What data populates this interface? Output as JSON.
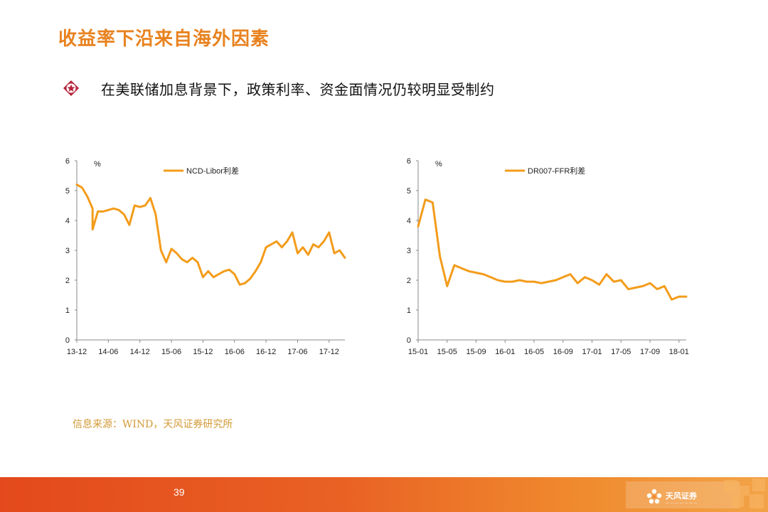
{
  "title": "收益率下沿来自海外因素",
  "bullet": {
    "icon": "diamond-star-icon",
    "text": "在美联储加息背景下，政策利率、资金面情况仍较明显受制约"
  },
  "source": "信息来源：WIND，天风证券研究所",
  "footer": {
    "page_number": "39",
    "logo_text": "天风证券",
    "logo_icon": "tianfeng-logo-icon"
  },
  "colors": {
    "title": "#e8821f",
    "series": "#f39c1b",
    "source": "#d39a35",
    "footer": "#e3491c"
  },
  "chart_data": [
    {
      "type": "line",
      "unit": "%",
      "ylim": [
        0,
        6
      ],
      "yticks": [
        "0",
        "1",
        "2",
        "3",
        "4",
        "5",
        "6"
      ],
      "x_ticks": [
        "13-12",
        "14-06",
        "14-12",
        "15-06",
        "15-12",
        "16-06",
        "16-12",
        "17-06",
        "17-12"
      ],
      "x_range": [
        "2013-12",
        "2018-03"
      ],
      "legend": "top-center",
      "grid": false,
      "series": [
        {
          "name": "NCD-Libor利差",
          "color": "#f39c1b",
          "points": [
            [
              "2013-12",
              5.2
            ],
            [
              "2014-01",
              5.1
            ],
            [
              "2014-02",
              4.8
            ],
            [
              "2014-03",
              4.4
            ],
            [
              "2014-03",
              3.7
            ],
            [
              "2014-04",
              4.3
            ],
            [
              "2014-05",
              4.3
            ],
            [
              "2014-06",
              4.35
            ],
            [
              "2014-07",
              4.4
            ],
            [
              "2014-08",
              4.35
            ],
            [
              "2014-09",
              4.2
            ],
            [
              "2014-10",
              3.85
            ],
            [
              "2014-11",
              4.5
            ],
            [
              "2014-12",
              4.45
            ],
            [
              "2015-01",
              4.5
            ],
            [
              "2015-02",
              4.75
            ],
            [
              "2015-03",
              4.2
            ],
            [
              "2015-04",
              3.0
            ],
            [
              "2015-05",
              2.6
            ],
            [
              "2015-06",
              3.05
            ],
            [
              "2015-07",
              2.9
            ],
            [
              "2015-08",
              2.7
            ],
            [
              "2015-09",
              2.6
            ],
            [
              "2015-10",
              2.75
            ],
            [
              "2015-11",
              2.6
            ],
            [
              "2015-12",
              2.1
            ],
            [
              "2016-01",
              2.3
            ],
            [
              "2016-02",
              2.1
            ],
            [
              "2016-03",
              2.2
            ],
            [
              "2016-04",
              2.3
            ],
            [
              "2016-05",
              2.35
            ],
            [
              "2016-06",
              2.2
            ],
            [
              "2016-07",
              1.85
            ],
            [
              "2016-08",
              1.9
            ],
            [
              "2016-09",
              2.05
            ],
            [
              "2016-10",
              2.3
            ],
            [
              "2016-11",
              2.6
            ],
            [
              "2016-12",
              3.1
            ],
            [
              "2017-01",
              3.2
            ],
            [
              "2017-02",
              3.3
            ],
            [
              "2017-03",
              3.1
            ],
            [
              "2017-04",
              3.3
            ],
            [
              "2017-05",
              3.6
            ],
            [
              "2017-06",
              2.9
            ],
            [
              "2017-07",
              3.1
            ],
            [
              "2017-08",
              2.85
            ],
            [
              "2017-09",
              3.2
            ],
            [
              "2017-10",
              3.1
            ],
            [
              "2017-11",
              3.3
            ],
            [
              "2017-12",
              3.6
            ],
            [
              "2018-01",
              2.9
            ],
            [
              "2018-02",
              3.0
            ],
            [
              "2018-03",
              2.75
            ]
          ]
        }
      ]
    },
    {
      "type": "line",
      "unit": "%",
      "ylim": [
        0,
        6
      ],
      "yticks": [
        "0",
        "1",
        "2",
        "3",
        "4",
        "5",
        "6"
      ],
      "x_ticks": [
        "15-01",
        "15-05",
        "15-09",
        "16-01",
        "16-05",
        "16-09",
        "17-01",
        "17-05",
        "17-09",
        "18-01"
      ],
      "x_range": [
        "2015-01",
        "2018-02"
      ],
      "legend": "top-center",
      "grid": false,
      "series": [
        {
          "name": "DR007-FFR利差",
          "color": "#f39c1b",
          "points": [
            [
              "2015-01",
              3.8
            ],
            [
              "2015-02",
              4.7
            ],
            [
              "2015-03",
              4.6
            ],
            [
              "2015-04",
              2.8
            ],
            [
              "2015-05",
              1.8
            ],
            [
              "2015-06",
              2.5
            ],
            [
              "2015-07",
              2.4
            ],
            [
              "2015-08",
              2.3
            ],
            [
              "2015-09",
              2.25
            ],
            [
              "2015-10",
              2.2
            ],
            [
              "2015-11",
              2.1
            ],
            [
              "2015-12",
              2.0
            ],
            [
              "2016-01",
              1.95
            ],
            [
              "2016-02",
              1.95
            ],
            [
              "2016-03",
              2.0
            ],
            [
              "2016-04",
              1.95
            ],
            [
              "2016-05",
              1.95
            ],
            [
              "2016-06",
              1.9
            ],
            [
              "2016-07",
              1.95
            ],
            [
              "2016-08",
              2.0
            ],
            [
              "2016-09",
              2.1
            ],
            [
              "2016-10",
              2.2
            ],
            [
              "2016-11",
              1.9
            ],
            [
              "2016-12",
              2.1
            ],
            [
              "2017-01",
              2.0
            ],
            [
              "2017-02",
              1.85
            ],
            [
              "2017-03",
              2.2
            ],
            [
              "2017-04",
              1.95
            ],
            [
              "2017-05",
              2.0
            ],
            [
              "2017-06",
              1.7
            ],
            [
              "2017-07",
              1.75
            ],
            [
              "2017-08",
              1.8
            ],
            [
              "2017-09",
              1.9
            ],
            [
              "2017-10",
              1.7
            ],
            [
              "2017-11",
              1.8
            ],
            [
              "2017-12",
              1.35
            ],
            [
              "2018-01",
              1.45
            ],
            [
              "2018-02",
              1.45
            ]
          ]
        }
      ]
    }
  ]
}
